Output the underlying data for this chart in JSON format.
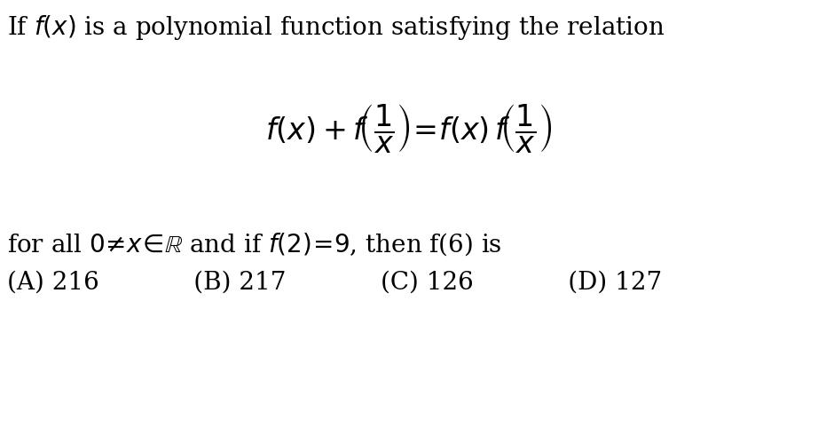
{
  "background_color": "#ffffff",
  "text_color": "#000000",
  "fig_width": 9.22,
  "fig_height": 4.82,
  "dpi": 100,
  "line1_text": "If $f(x)$ is a polynomial function satisfying the relation",
  "line2_text": "$f(x)+f\\!\\left(\\dfrac{1}{x}\\right)\\!=\\!f(x)\\,f\\!\\left(\\dfrac{1}{x}\\right)$",
  "line3_text": "for all $0\\!\\neq\\! x\\!\\in\\!\\mathbb{R}$ and if $f(2)\\!=\\!9$, then f(6) is",
  "line4_text": "(A) 216            (B) 217            (C) 126            (D) 127",
  "font_size_main": 20,
  "font_size_formula": 24
}
